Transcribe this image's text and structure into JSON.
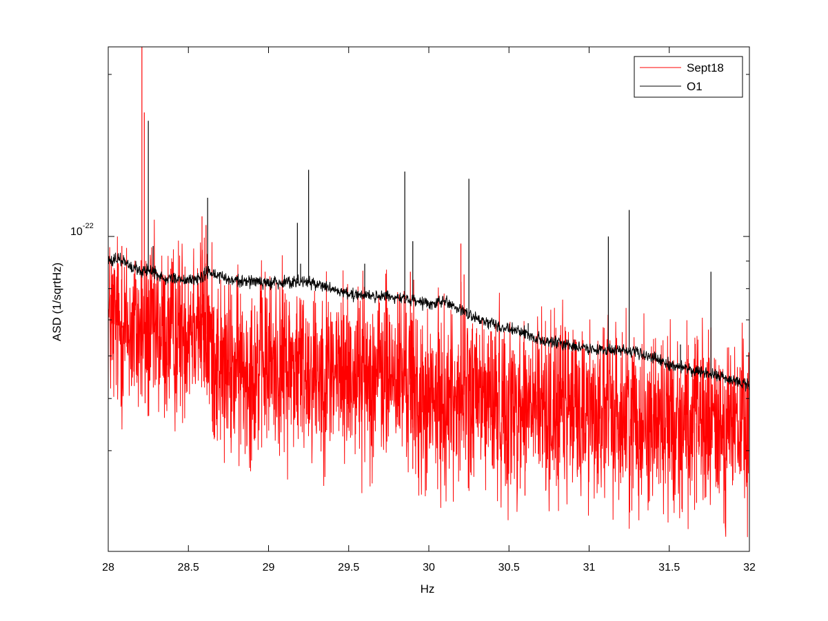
{
  "chart_data": {
    "type": "line",
    "xlabel": "Hz",
    "ylabel": "ASD (1/sqrtHz)",
    "xlim": [
      28,
      32
    ],
    "ylim": [
      2.6e-23,
      2.25e-22
    ],
    "yscale": "log",
    "grid": false,
    "legend_position": "top-right",
    "x_ticks": [
      28,
      28.5,
      29,
      29.5,
      30,
      30.5,
      31,
      31.5,
      32
    ],
    "x_tick_labels": [
      "28",
      "28.5",
      "29",
      "29.5",
      "30",
      "30.5",
      "31",
      "31.5",
      "32"
    ],
    "y_labeled_tick": {
      "base": "10",
      "exponent": "-22",
      "value": 1e-22
    },
    "y_minor_ticks": [
      4e-23,
      5e-23,
      6e-23,
      7e-23,
      8e-23,
      9e-23,
      2e-22
    ],
    "series": [
      {
        "name": "Sept18",
        "color": "#ff0000",
        "trend": [
          [
            28.0,
            6.9e-23
          ],
          [
            28.2,
            6.6e-23
          ],
          [
            28.4,
            6.5e-23
          ],
          [
            28.55,
            7.2e-23
          ],
          [
            28.72,
            5.6e-23
          ],
          [
            29.0,
            5.8e-23
          ],
          [
            29.5,
            5.6e-23
          ],
          [
            29.88,
            5.5e-23
          ],
          [
            29.95,
            4.8e-23
          ],
          [
            30.2,
            5.1e-23
          ],
          [
            30.5,
            4.85e-23
          ],
          [
            31.0,
            4.75e-23
          ],
          [
            31.5,
            4.55e-23
          ],
          [
            32.0,
            4.4e-23
          ]
        ],
        "peaks": [
          [
            28.02,
            8.9e-23
          ],
          [
            28.085,
            9.6e-23
          ],
          [
            28.21,
            2.25e-22
          ],
          [
            28.225,
            1.7e-22
          ],
          [
            28.585,
            1.09e-22
          ],
          [
            28.61,
            1.05e-22
          ],
          [
            29.885,
            8.6e-23
          ],
          [
            30.2,
            9.7e-23
          ],
          [
            30.22,
            8.5e-23
          ]
        ],
        "dips": [
          [
            28.23,
            4.9e-23
          ],
          [
            29.9,
            3.7e-23
          ],
          [
            30.6,
            3.3e-23
          ],
          [
            31.67,
            3.2e-23
          ]
        ]
      },
      {
        "name": "O1",
        "color": "#000000",
        "trend": [
          [
            28.0,
            9e-23
          ],
          [
            28.08,
            9.1e-23
          ],
          [
            28.15,
            8.7e-23
          ],
          [
            28.28,
            8.6e-23
          ],
          [
            28.35,
            8.4e-23
          ],
          [
            28.55,
            8.3e-23
          ],
          [
            28.62,
            8.6e-23
          ],
          [
            28.75,
            8.3e-23
          ],
          [
            29.0,
            8.2e-23
          ],
          [
            29.2,
            8.3e-23
          ],
          [
            29.5,
            7.8e-23
          ],
          [
            29.8,
            7.7e-23
          ],
          [
            30.0,
            7.5e-23
          ],
          [
            30.1,
            7.6e-23
          ],
          [
            30.3,
            7e-23
          ],
          [
            30.55,
            6.7e-23
          ],
          [
            30.7,
            6.4e-23
          ],
          [
            31.0,
            6.2e-23
          ],
          [
            31.3,
            6.1e-23
          ],
          [
            31.5,
            5.8e-23
          ],
          [
            31.8,
            5.5e-23
          ],
          [
            32.0,
            5.3e-23
          ]
        ],
        "peaks": [
          [
            28.02,
            9.2e-23
          ],
          [
            28.25,
            1.64e-22
          ],
          [
            28.28,
            9.6e-23
          ],
          [
            28.62,
            1.18e-22
          ],
          [
            29.18,
            1.06e-22
          ],
          [
            29.2,
            8.9e-23
          ],
          [
            29.25,
            1.33e-22
          ],
          [
            29.6,
            8.9e-23
          ],
          [
            29.85,
            1.32e-22
          ],
          [
            29.9,
            9.8e-23
          ],
          [
            30.25,
            1.28e-22
          ],
          [
            30.62,
            6.9e-23
          ],
          [
            31.12,
            1e-22
          ],
          [
            31.25,
            1.12e-22
          ],
          [
            31.57,
            6.3e-23
          ],
          [
            31.76,
            8.6e-23
          ]
        ]
      }
    ]
  }
}
